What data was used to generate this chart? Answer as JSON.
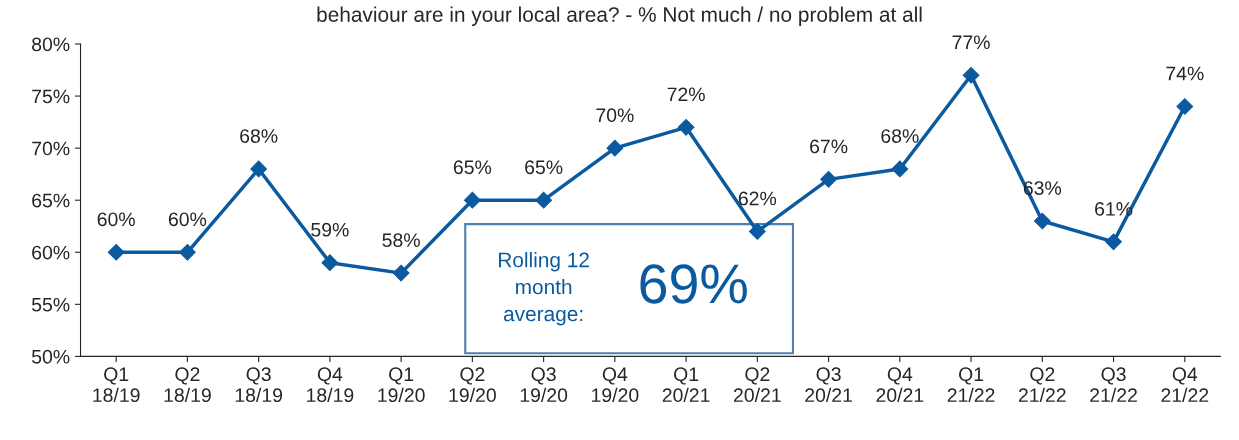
{
  "chart_data": {
    "type": "line",
    "title": "behaviour are in your local area? - % Not much / no problem at all",
    "categories": [
      "Q1\n18/19",
      "Q2\n18/19",
      "Q3\n18/19",
      "Q4\n18/19",
      "Q1\n19/20",
      "Q2\n19/20",
      "Q3\n19/20",
      "Q4\n19/20",
      "Q1\n20/21",
      "Q2\n20/21",
      "Q3\n20/21",
      "Q4\n20/21",
      "Q1\n21/22",
      "Q2\n21/22",
      "Q3\n21/22",
      "Q4\n21/22"
    ],
    "series": [
      {
        "color": "#0b5aa0",
        "values": [
          60,
          60,
          68,
          59,
          58,
          65,
          65,
          70,
          72,
          62,
          67,
          68,
          77,
          63,
          61,
          74
        ],
        "value_labels": [
          "60%",
          "60%",
          "68%",
          "59%",
          "58%",
          "65%",
          "65%",
          "70%",
          "72%",
          "62%",
          "67%",
          "68%",
          "77%",
          "63%",
          "61%",
          "74%"
        ]
      }
    ],
    "ylim": [
      50,
      80
    ],
    "yticks": [
      {
        "value": 50,
        "label": "50%"
      },
      {
        "value": 55,
        "label": "55%"
      },
      {
        "value": 60,
        "label": "60%"
      },
      {
        "value": 65,
        "label": "65%"
      },
      {
        "value": 70,
        "label": "70%"
      },
      {
        "value": 75,
        "label": "75%"
      },
      {
        "value": 80,
        "label": "80%"
      }
    ],
    "marker": "diamond",
    "line_style": "solid",
    "grid": false,
    "legend": false,
    "annotations": [
      "Rolling 12\nmonth\naverage:",
      "69%"
    ]
  }
}
